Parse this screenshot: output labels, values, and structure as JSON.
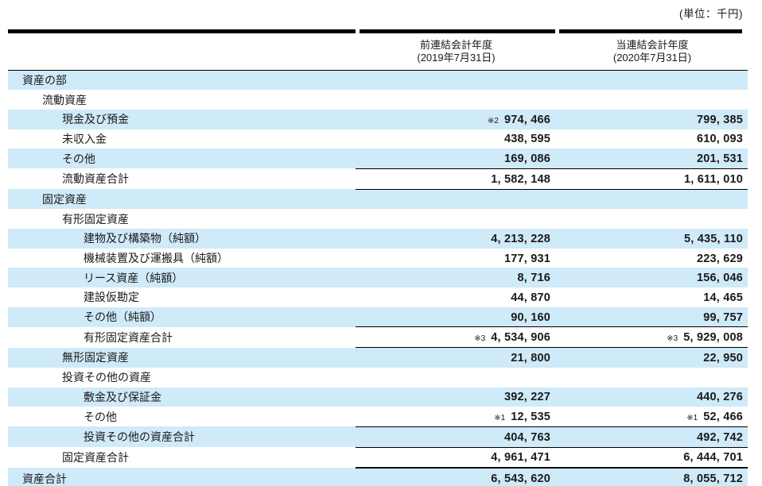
{
  "unit_label": "(単位：千円)",
  "columns": [
    {
      "label": "前連結会計年度",
      "sublabel": "(2019年7月31日)"
    },
    {
      "label": "当連結会計年度",
      "sublabel": "(2020年7月31日)"
    }
  ],
  "rows": [
    {
      "label": "資産の部",
      "indent": 1
    },
    {
      "label": "流動資産",
      "indent": 2
    },
    {
      "label": "現金及び預金",
      "indent": 3,
      "note1": "※2",
      "value1": "974,466",
      "value2": "799,385"
    },
    {
      "label": "未収入金",
      "indent": 3,
      "value1": "438,595",
      "value2": "610,093"
    },
    {
      "label": "その他",
      "indent": 3,
      "value1": "169,086",
      "value2": "201,531"
    },
    {
      "label": "流動資産合計",
      "indent": 3,
      "value1": "1,582,148",
      "value2": "1,611,010",
      "total": true
    },
    {
      "label": "固定資産",
      "indent": 2
    },
    {
      "label": "有形固定資産",
      "indent": 3
    },
    {
      "label": "建物及び構築物（純額）",
      "indent": 4,
      "value1": "4,213,228",
      "value2": "5,435,110"
    },
    {
      "label": "機械装置及び運搬具（純額）",
      "indent": 4,
      "value1": "177,931",
      "value2": "223,629"
    },
    {
      "label": "リース資産（純額）",
      "indent": 4,
      "value1": "8,716",
      "value2": "156,046"
    },
    {
      "label": "建設仮勘定",
      "indent": 4,
      "value1": "44,870",
      "value2": "14,465"
    },
    {
      "label": "その他（純額）",
      "indent": 4,
      "value1": "90,160",
      "value2": "99,757"
    },
    {
      "label": "有形固定資産合計",
      "indent": 4,
      "note1": "※3",
      "value1": "4,534,906",
      "note2": "※3",
      "value2": "5,929,008",
      "total": true
    },
    {
      "label": "無形固定資産",
      "indent": 3,
      "value1": "21,800",
      "value2": "22,950"
    },
    {
      "label": "投資その他の資産",
      "indent": 3
    },
    {
      "label": "敷金及び保証金",
      "indent": 4,
      "value1": "392,227",
      "value2": "440,276"
    },
    {
      "label": "その他",
      "indent": 4,
      "note1": "※1",
      "value1": "12,535",
      "note2": "※1",
      "value2": "52,466"
    },
    {
      "label": "投資その他の資産合計",
      "indent": 4,
      "value1": "404,763",
      "value2": "492,742",
      "total": true
    },
    {
      "label": "固定資産合計",
      "indent": 3,
      "value1": "4,961,471",
      "value2": "6,444,701",
      "total": true
    },
    {
      "label": "資産合計",
      "indent": 1,
      "value1": "6,543,620",
      "value2": "8,055,712",
      "total": true,
      "grand": true
    }
  ],
  "colors": {
    "row_highlight": "#cfeaf8",
    "rule": "#000000",
    "text": "#1a1a1a"
  }
}
